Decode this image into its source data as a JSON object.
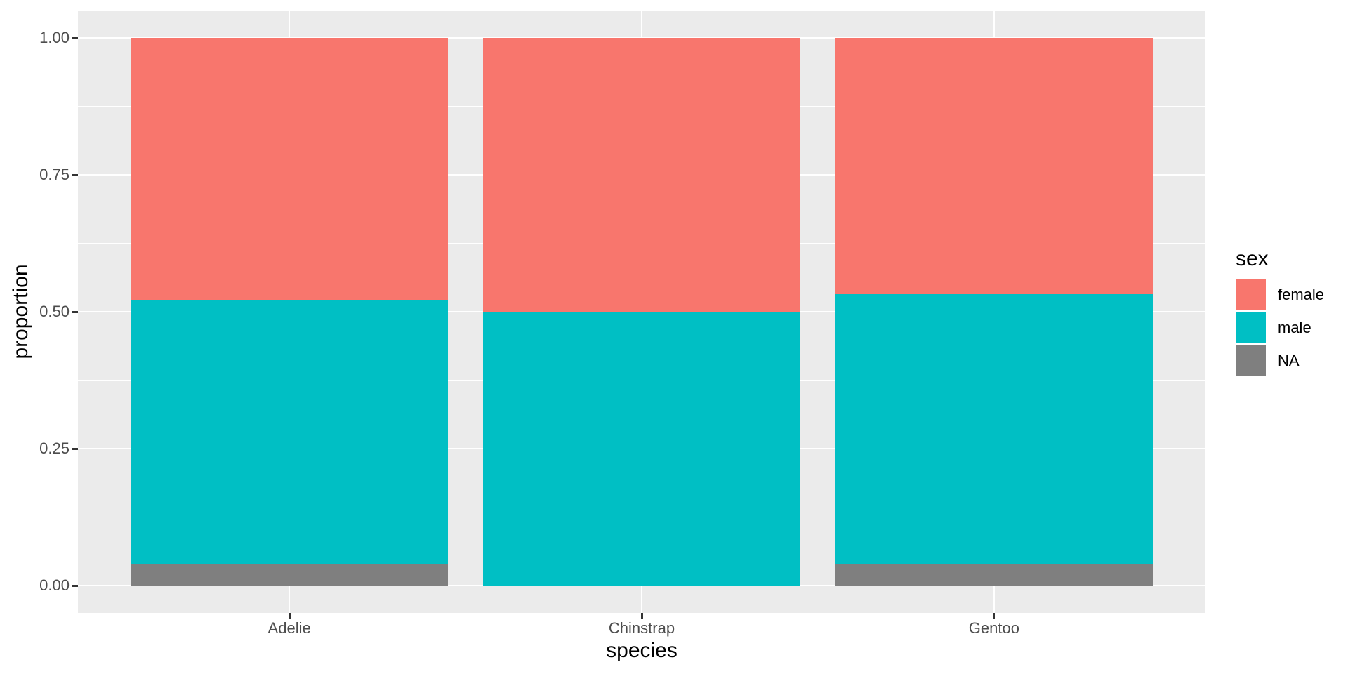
{
  "chart_data": {
    "type": "stacked_bar",
    "title": "",
    "xlabel": "species",
    "ylabel": "proportion",
    "categories": [
      "Adelie",
      "Chinstrap",
      "Gentoo"
    ],
    "series": [
      {
        "name": "female",
        "color": "#F8766D",
        "values": [
          0.48,
          0.5,
          0.468
        ]
      },
      {
        "name": "male",
        "color": "#00BFC4",
        "values": [
          0.48,
          0.5,
          0.492
        ]
      },
      {
        "name": "NA",
        "color": "#7F7F7F",
        "values": [
          0.04,
          0.0,
          0.04
        ]
      }
    ],
    "stack_order_bottom_to_top": [
      "NA",
      "male",
      "female"
    ],
    "ylim": [
      -0.05,
      1.05
    ],
    "y_ticks": [
      {
        "value": 0.0,
        "label": "0.00"
      },
      {
        "value": 0.25,
        "label": "0.25"
      },
      {
        "value": 0.5,
        "label": "0.50"
      },
      {
        "value": 0.75,
        "label": "0.75"
      },
      {
        "value": 1.0,
        "label": "1.00"
      }
    ],
    "y_minor_ticks": [
      0.125,
      0.375,
      0.625,
      0.875
    ],
    "bar_width_fraction": 0.9,
    "grid": "white major and minor horizontal lines, white vertical line at each category",
    "legend": {
      "title": "sex",
      "position": "right"
    },
    "theme": {
      "panel_background": "#EBEBEB",
      "gridline_color": "#FFFFFF",
      "axis_text_color": "#4D4D4D",
      "tick_mark_color": "#333333",
      "title_color": "#000000",
      "page_background": "#FFFFFF"
    }
  }
}
